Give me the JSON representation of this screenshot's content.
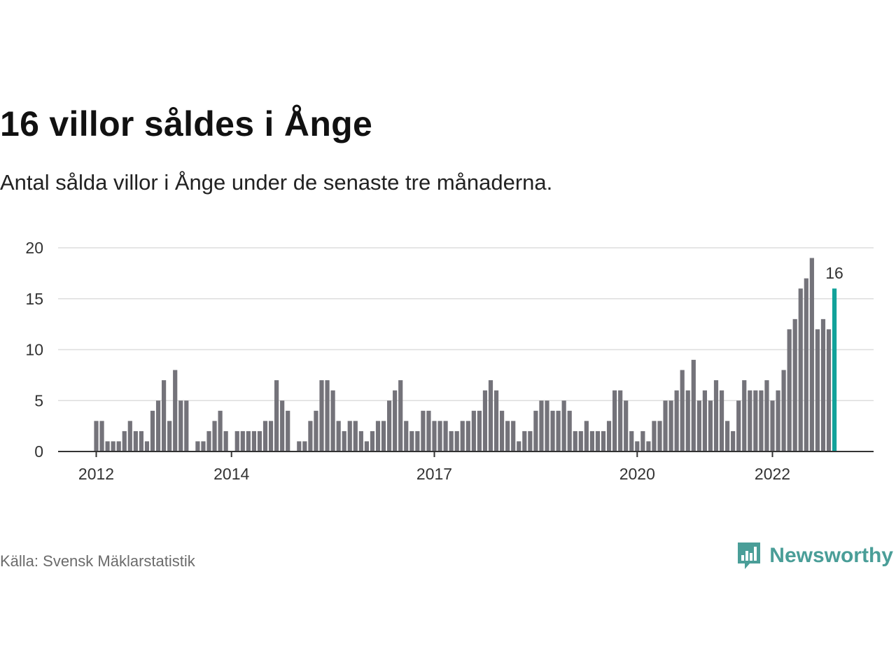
{
  "title": "16 villor såldes i Ånge",
  "subtitle": "Antal sålda villor i Ånge under de senaste tre månaderna.",
  "source": "Källa: Svensk Mäklarstatistik",
  "brand": {
    "name": "Newsworthy",
    "icon": "bar-chart-speech-bubble-icon"
  },
  "colors": {
    "bar": "#74737a",
    "highlight": "#12a29a",
    "grid": "#dddddd",
    "axis": "#333333",
    "brand": "#4a9e98"
  },
  "chart_data": {
    "type": "bar",
    "ylim": [
      0,
      20
    ],
    "yticks": [
      0,
      5,
      10,
      15,
      20
    ],
    "xticks": [
      {
        "label": "2012",
        "index": 0
      },
      {
        "label": "2014",
        "index": 24
      },
      {
        "label": "2017",
        "index": 60
      },
      {
        "label": "2020",
        "index": 96
      },
      {
        "label": "2022",
        "index": 120
      }
    ],
    "values": [
      3,
      3,
      1,
      1,
      1,
      2,
      3,
      2,
      2,
      1,
      4,
      5,
      7,
      3,
      8,
      5,
      5,
      0,
      1,
      1,
      2,
      3,
      4,
      2,
      0,
      2,
      2,
      2,
      2,
      2,
      3,
      3,
      7,
      5,
      4,
      0,
      1,
      1,
      3,
      4,
      7,
      7,
      6,
      3,
      2,
      3,
      3,
      2,
      1,
      2,
      3,
      3,
      5,
      6,
      7,
      3,
      2,
      2,
      4,
      4,
      3,
      3,
      3,
      2,
      2,
      3,
      3,
      4,
      4,
      6,
      7,
      6,
      4,
      3,
      3,
      1,
      2,
      2,
      4,
      5,
      5,
      4,
      4,
      5,
      4,
      2,
      2,
      3,
      2,
      2,
      2,
      3,
      6,
      6,
      5,
      2,
      1,
      2,
      1,
      3,
      3,
      5,
      5,
      6,
      8,
      6,
      9,
      5,
      6,
      5,
      7,
      6,
      3,
      2,
      5,
      7,
      6,
      6,
      6,
      7,
      5,
      6,
      8,
      12,
      13,
      16,
      17,
      19,
      12,
      13,
      12,
      16
    ],
    "highlight_index": 131,
    "highlight_label": "16"
  }
}
